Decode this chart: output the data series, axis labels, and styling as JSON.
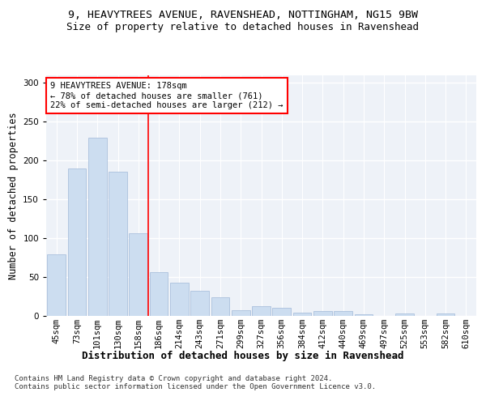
{
  "title": "9, HEAVYTREES AVENUE, RAVENSHEAD, NOTTINGHAM, NG15 9BW",
  "subtitle": "Size of property relative to detached houses in Ravenshead",
  "xlabel": "Distribution of detached houses by size in Ravenshead",
  "ylabel": "Number of detached properties",
  "categories": [
    "45sqm",
    "73sqm",
    "101sqm",
    "130sqm",
    "158sqm",
    "186sqm",
    "214sqm",
    "243sqm",
    "271sqm",
    "299sqm",
    "327sqm",
    "356sqm",
    "384sqm",
    "412sqm",
    "440sqm",
    "469sqm",
    "497sqm",
    "525sqm",
    "553sqm",
    "582sqm",
    "610sqm"
  ],
  "values": [
    79,
    190,
    229,
    185,
    106,
    56,
    43,
    32,
    24,
    7,
    12,
    10,
    4,
    6,
    6,
    2,
    0,
    3,
    0,
    3,
    0
  ],
  "bar_color": "#ccddf0",
  "bar_edge_color": "#a0b8d8",
  "annotation_text": "9 HEAVYTREES AVENUE: 178sqm\n← 78% of detached houses are smaller (761)\n22% of semi-detached houses are larger (212) →",
  "annotation_box_color": "white",
  "annotation_box_edge": "red",
  "vline_color": "red",
  "footnote": "Contains HM Land Registry data © Crown copyright and database right 2024.\nContains public sector information licensed under the Open Government Licence v3.0.",
  "title_fontsize": 9.5,
  "subtitle_fontsize": 9,
  "xlabel_fontsize": 9,
  "ylabel_fontsize": 8.5,
  "tick_fontsize": 7.5,
  "annotation_fontsize": 7.5,
  "footnote_fontsize": 6.5,
  "ylim": [
    0,
    310
  ],
  "background_color": "#eef2f8",
  "grid_color": "white",
  "fig_bg": "#ffffff",
  "vline_x_index": 4.5
}
